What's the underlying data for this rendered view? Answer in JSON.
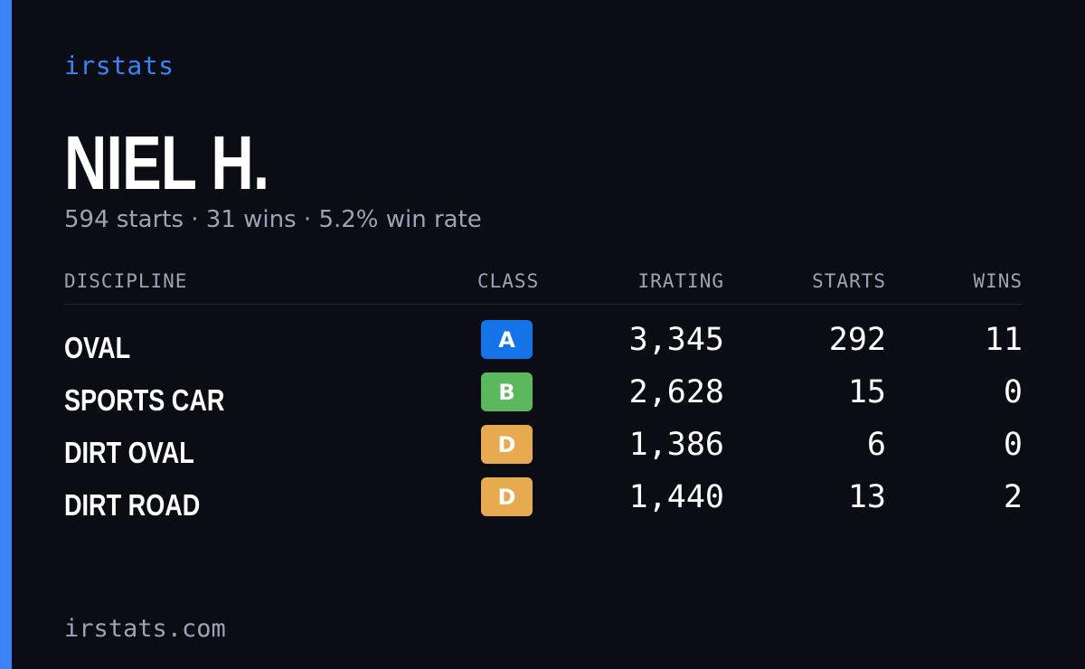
{
  "brand": "irstats",
  "driver": {
    "name": "NIEL H.",
    "summary": "594 starts · 31 wins · 5.2% win rate"
  },
  "table": {
    "headers": {
      "discipline": "DISCIPLINE",
      "class": "CLASS",
      "irating": "IRATING",
      "starts": "STARTS",
      "wins": "WINS"
    },
    "rows": [
      {
        "discipline": "OVAL",
        "class": "A",
        "class_color": "#1473e6",
        "irating": "3,345",
        "starts": "292",
        "wins": "11"
      },
      {
        "discipline": "SPORTS CAR",
        "class": "B",
        "class_color": "#5cb85c",
        "irating": "2,628",
        "starts": "15",
        "wins": "0"
      },
      {
        "discipline": "DIRT OVAL",
        "class": "D",
        "class_color": "#e8aa4e",
        "irating": "1,386",
        "starts": "6",
        "wins": "0"
      },
      {
        "discipline": "DIRT ROAD",
        "class": "D",
        "class_color": "#e8aa4e",
        "irating": "1,440",
        "starts": "13",
        "wins": "2"
      }
    ]
  },
  "footer": "irstats.com",
  "colors": {
    "background": "#0b0d14",
    "accent": "#3b82f6",
    "muted_text": "#9ca3b4"
  }
}
